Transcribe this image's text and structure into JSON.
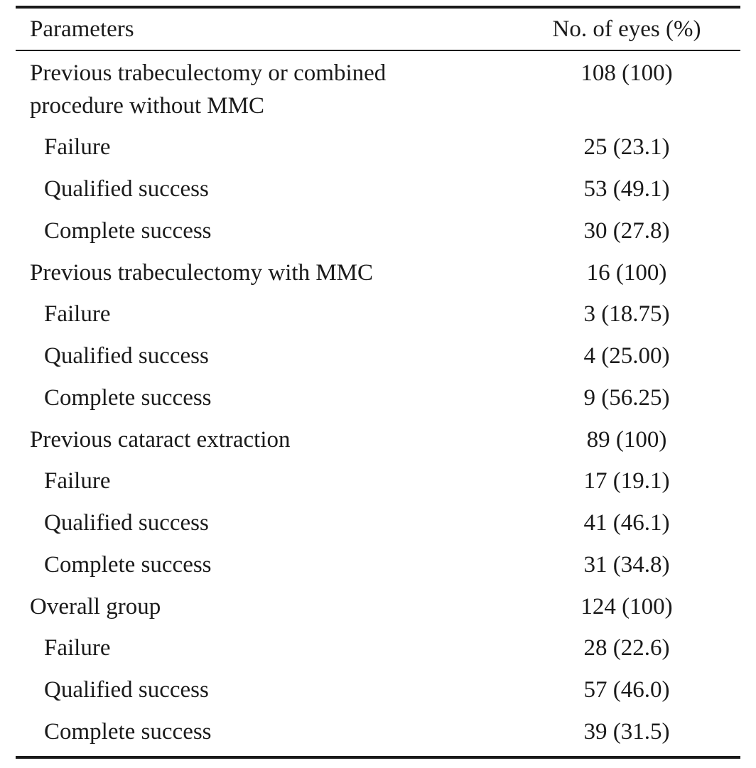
{
  "table": {
    "header": {
      "parameters": "Parameters",
      "no_of_eyes": "No. of eyes (%)"
    },
    "rows": [
      {
        "type": "group",
        "label": "Previous trabeculectomy or combined procedure without MMC",
        "value": "108 (100)"
      },
      {
        "type": "sub",
        "label": "Failure",
        "value": "25 (23.1)"
      },
      {
        "type": "sub",
        "label": "Qualified success",
        "value": "53 (49.1)"
      },
      {
        "type": "sub",
        "label": "Complete success",
        "value": "30 (27.8)"
      },
      {
        "type": "group",
        "label": "Previous trabeculectomy with MMC",
        "value": "16 (100)"
      },
      {
        "type": "sub",
        "label": "Failure",
        "value": "3 (18.75)"
      },
      {
        "type": "sub",
        "label": "Qualified success",
        "value": "4 (25.00)"
      },
      {
        "type": "sub",
        "label": "Complete success",
        "value": "9 (56.25)"
      },
      {
        "type": "group",
        "label": "Previous cataract extraction",
        "value": "89 (100)"
      },
      {
        "type": "sub",
        "label": "Failure",
        "value": "17 (19.1)"
      },
      {
        "type": "sub",
        "label": "Qualified success",
        "value": "41 (46.1)"
      },
      {
        "type": "sub",
        "label": "Complete success",
        "value": "31 (34.8)"
      },
      {
        "type": "group",
        "label": "Overall group",
        "value": "124 (100)"
      },
      {
        "type": "sub",
        "label": "Failure",
        "value": "28 (22.6)"
      },
      {
        "type": "sub",
        "label": "Qualified success",
        "value": "57 (46.0)"
      },
      {
        "type": "sub",
        "label": "Complete success",
        "value": "39 (31.5)"
      }
    ]
  }
}
